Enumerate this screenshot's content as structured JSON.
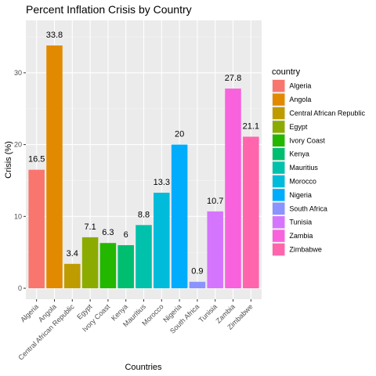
{
  "chart_data": {
    "type": "bar",
    "title": "Percent Inflation Crisis by Country",
    "xlabel": "Countries",
    "ylabel": "Crisis (%)",
    "ylim": [
      0,
      36
    ],
    "yticks": [
      0,
      10,
      20,
      30
    ],
    "grid": true,
    "legend_title": "country",
    "legend_position": "right",
    "categories": [
      "Algeria",
      "Angola",
      "Central African Republic",
      "Egypt",
      "Ivory Coast",
      "Kenya",
      "Mauritius",
      "Morocco",
      "Nigeria",
      "South Africa",
      "Tunisia",
      "Zambia",
      "Zimbabwe"
    ],
    "values": [
      16.5,
      33.8,
      3.4,
      7.1,
      6.3,
      6,
      8.8,
      13.3,
      20,
      0.9,
      10.7,
      27.8,
      21.1
    ],
    "colors": [
      "#F8766D",
      "#E18A00",
      "#BE9C00",
      "#8CAB00",
      "#24B700",
      "#00BE70",
      "#00C1AB",
      "#00BBDA",
      "#00ACFC",
      "#8B93FF",
      "#D575FE",
      "#F962DD",
      "#FF65AC"
    ]
  }
}
